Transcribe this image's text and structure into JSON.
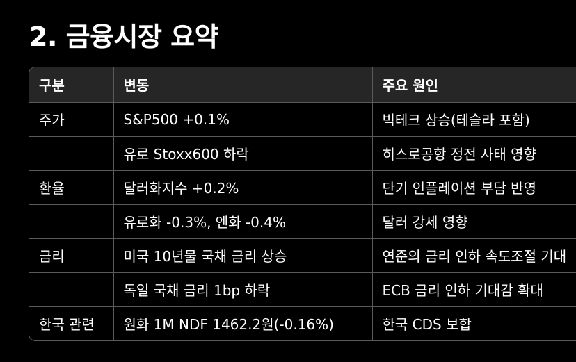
{
  "title": "2. 금융시장 요약",
  "table": {
    "headers": [
      "구분",
      "변동",
      "주요 원인"
    ],
    "rows": [
      [
        "주가",
        "S&P500 +0.1%",
        "빅테크 상승(테슬라 포함)"
      ],
      [
        "",
        "유로 Stoxx600 하락",
        "히스로공항 정전 사태 영향"
      ],
      [
        "환율",
        "달러화지수 +0.2%",
        "단기 인플레이션 부담 반영"
      ],
      [
        "",
        "유로화 -0.3%, 엔화 -0.4%",
        "달러 강세 영향"
      ],
      [
        "금리",
        "미국 10년물 국채 금리 상승",
        "연준의 금리 인하 속도조절 기대"
      ],
      [
        "",
        "독일 국채 금리 1bp 하락",
        "ECB 금리 인하 기대감 확대"
      ],
      [
        "한국 관련",
        "원화 1M NDF 1462.2원(-0.16%)",
        "한국 CDS 보합"
      ]
    ]
  }
}
